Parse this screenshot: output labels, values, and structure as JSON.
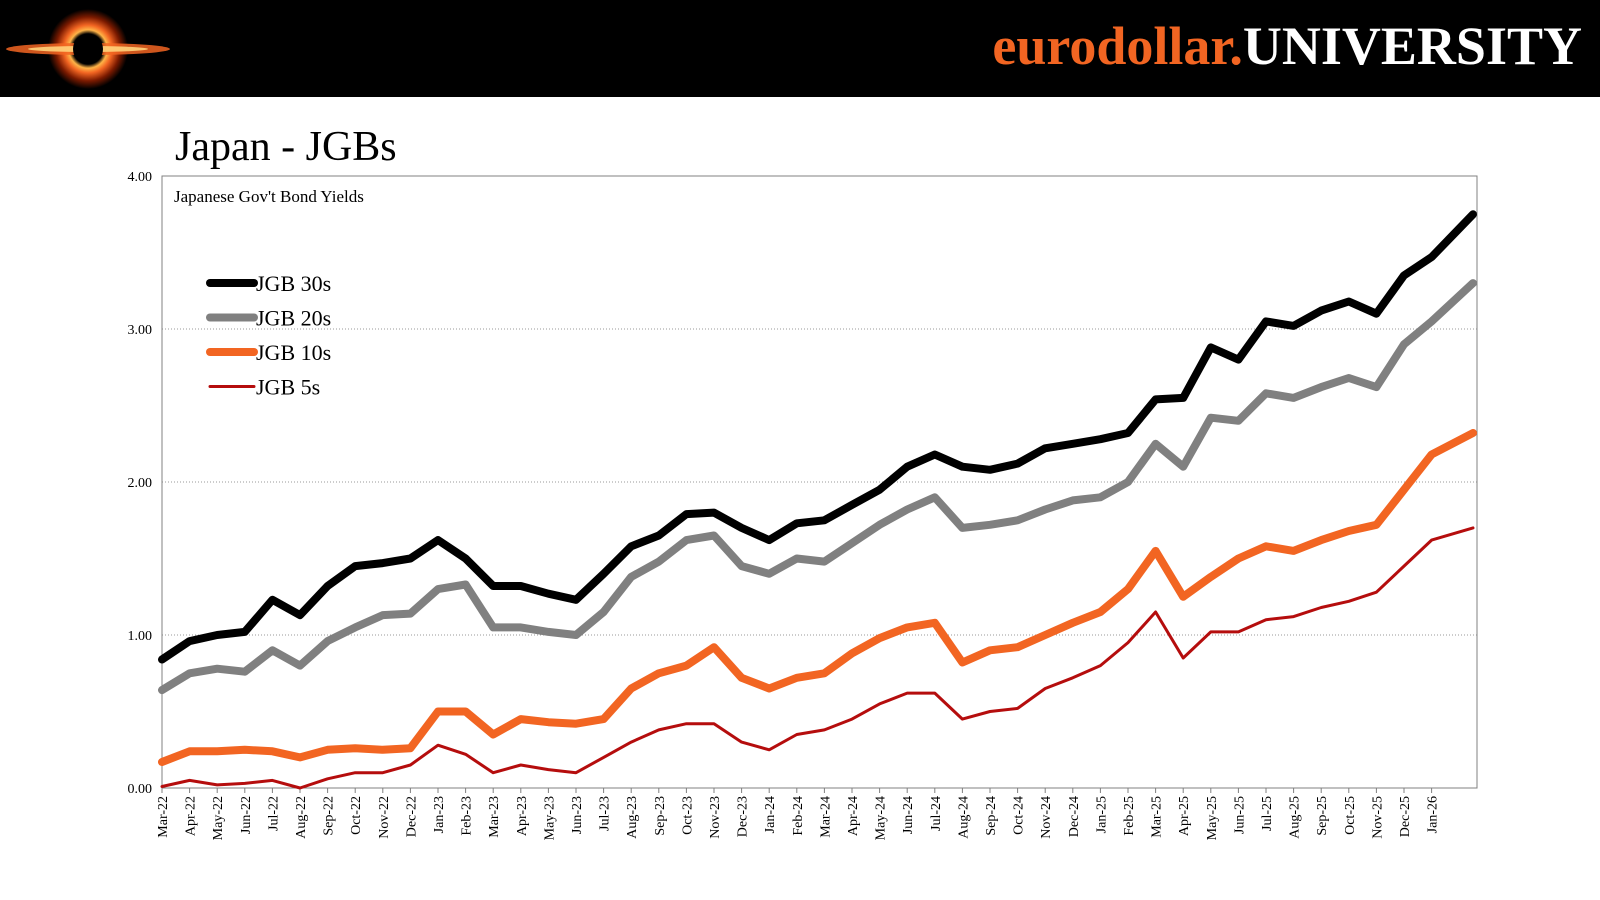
{
  "header": {
    "brand_part1": "eurodollar.",
    "brand_part2": "UNIVERSITY",
    "brand_color": "#f26522"
  },
  "page_title": "Japan - JGBs",
  "chart_data": {
    "type": "line",
    "title": "Japan - JGBs",
    "subtitle": "Japanese Gov't Bond Yields",
    "ylim": [
      0,
      4
    ],
    "y_ticks": [
      "0.00",
      "1.00",
      "2.00",
      "3.00",
      "4.00"
    ],
    "grid": "horizontal dotted",
    "legend_position": "top-left",
    "categories": [
      "Mar-22",
      "Apr-22",
      "May-22",
      "Jun-22",
      "Jul-22",
      "Aug-22",
      "Sep-22",
      "Oct-22",
      "Nov-22",
      "Dec-22",
      "Jan-23",
      "Feb-23",
      "Mar-23",
      "Apr-23",
      "May-23",
      "Jun-23",
      "Jul-23",
      "Aug-23",
      "Sep-23",
      "Oct-23",
      "Nov-23",
      "Dec-23",
      "Jan-24",
      "Feb-24",
      "Mar-24",
      "Apr-24",
      "May-24",
      "Jun-24",
      "Jul-24",
      "Aug-24",
      "Sep-24",
      "Oct-24",
      "Nov-24",
      "Dec-24",
      "Jan-25",
      "Feb-25",
      "Mar-25",
      "Apr-25",
      "May-25",
      "Jun-25",
      "Jul-25",
      "Aug-25",
      "Sep-25",
      "Oct-25",
      "Nov-25",
      "Dec-25",
      "Jan-26"
    ],
    "series": [
      {
        "name": "JGB 30s",
        "color": "#000000",
        "values": [
          0.84,
          0.96,
          1.0,
          1.02,
          1.23,
          1.13,
          1.32,
          1.45,
          1.47,
          1.5,
          1.62,
          1.5,
          1.32,
          1.32,
          1.27,
          1.23,
          1.4,
          1.58,
          1.65,
          1.79,
          1.8,
          1.7,
          1.62,
          1.73,
          1.75,
          1.85,
          1.95,
          2.1,
          2.18,
          2.1,
          2.08,
          2.12,
          2.22,
          2.25,
          2.28,
          2.32,
          2.54,
          2.55,
          2.88,
          2.8,
          3.05,
          3.02,
          3.12,
          3.18,
          3.1,
          3.35,
          3.47
        ],
        "end_value": 3.75
      },
      {
        "name": "JGB 20s",
        "color": "#808080",
        "values": [
          0.64,
          0.75,
          0.78,
          0.76,
          0.9,
          0.8,
          0.96,
          1.05,
          1.13,
          1.14,
          1.3,
          1.33,
          1.05,
          1.05,
          1.02,
          1.0,
          1.15,
          1.38,
          1.48,
          1.62,
          1.65,
          1.45,
          1.4,
          1.5,
          1.48,
          1.6,
          1.72,
          1.82,
          1.9,
          1.7,
          1.72,
          1.75,
          1.82,
          1.88,
          1.9,
          2.0,
          2.25,
          2.1,
          2.42,
          2.4,
          2.58,
          2.55,
          2.62,
          2.68,
          2.62,
          2.9,
          3.05
        ],
        "end_value": 3.3
      },
      {
        "name": "JGB 10s",
        "color": "#f26522",
        "values": [
          0.17,
          0.24,
          0.24,
          0.25,
          0.24,
          0.2,
          0.25,
          0.26,
          0.25,
          0.26,
          0.5,
          0.5,
          0.35,
          0.45,
          0.43,
          0.42,
          0.45,
          0.65,
          0.75,
          0.8,
          0.92,
          0.72,
          0.65,
          0.72,
          0.75,
          0.88,
          0.98,
          1.05,
          1.08,
          0.82,
          0.9,
          0.92,
          1.0,
          1.08,
          1.15,
          1.3,
          1.55,
          1.25,
          1.38,
          1.5,
          1.58,
          1.55,
          1.62,
          1.68,
          1.72,
          1.95,
          2.18
        ],
        "end_value": 2.32
      },
      {
        "name": "JGB 5s",
        "color": "#b50d0d",
        "values": [
          0.01,
          0.05,
          0.02,
          0.03,
          0.05,
          0.0,
          0.06,
          0.1,
          0.1,
          0.15,
          0.28,
          0.22,
          0.1,
          0.15,
          0.12,
          0.1,
          0.2,
          0.3,
          0.38,
          0.42,
          0.42,
          0.3,
          0.25,
          0.35,
          0.38,
          0.45,
          0.55,
          0.62,
          0.62,
          0.45,
          0.5,
          0.52,
          0.65,
          0.72,
          0.8,
          0.95,
          1.15,
          0.85,
          1.02,
          1.02,
          1.1,
          1.12,
          1.18,
          1.22,
          1.28,
          1.45,
          1.62
        ],
        "end_value": 1.7
      }
    ]
  }
}
